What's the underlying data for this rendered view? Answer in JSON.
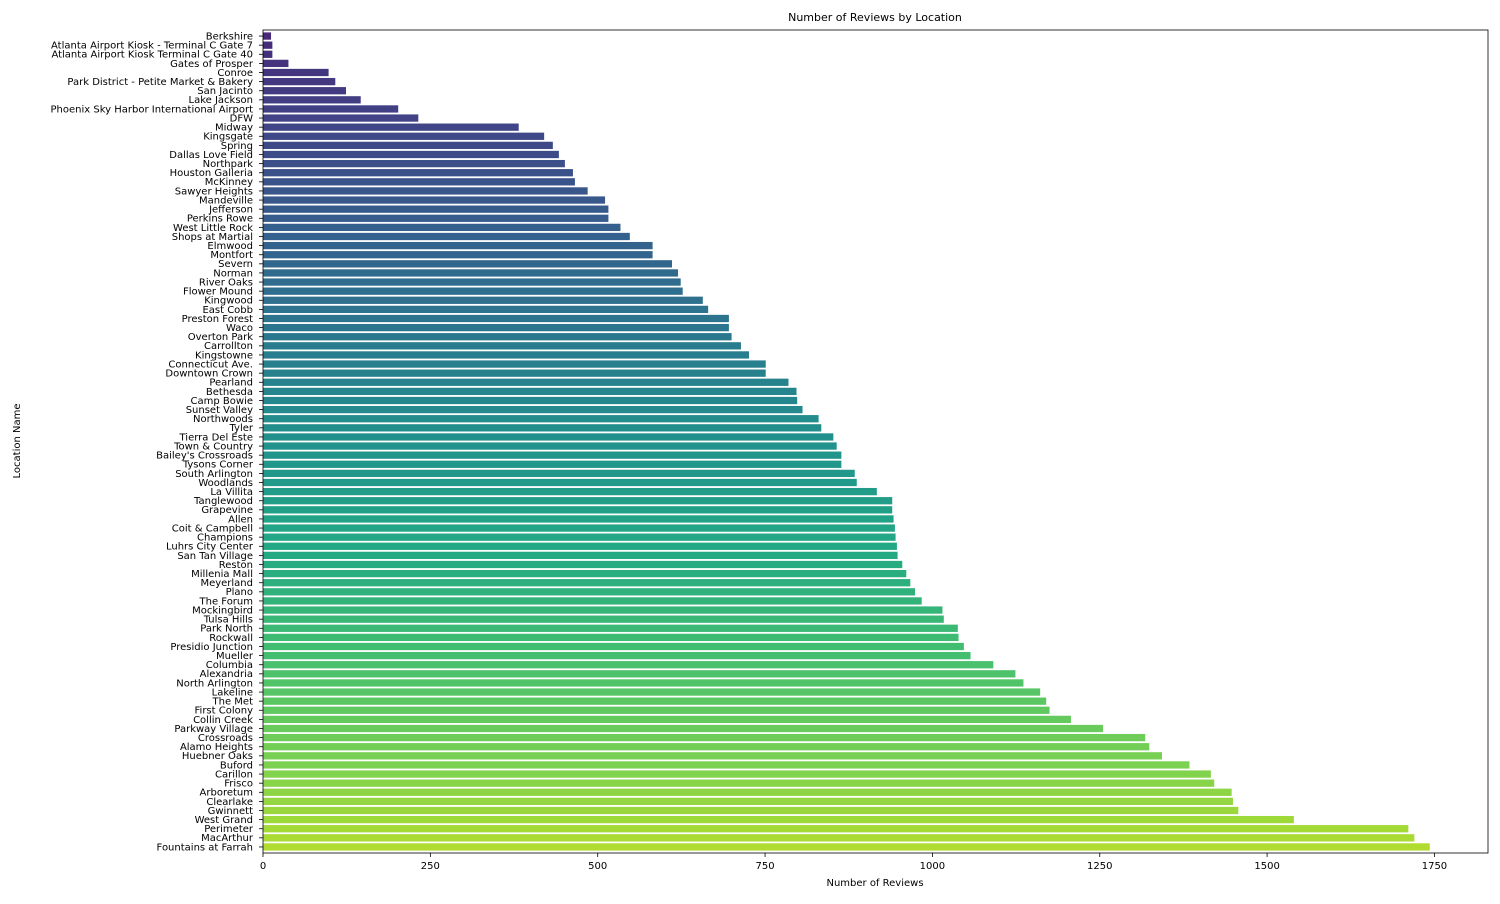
{
  "chart_data": {
    "type": "bar",
    "orientation": "horizontal",
    "title": "Number of Reviews by Location",
    "xlabel": "Number of Reviews",
    "ylabel": "Location Name",
    "xlim": [
      0,
      1830
    ],
    "xticks": [
      0,
      250,
      500,
      750,
      1000,
      1250,
      1500,
      1750
    ],
    "grid": false,
    "legend": "none",
    "colormap": "viridis",
    "categories": [
      "Berkshire",
      "Atlanta Airport Kiosk - Terminal C Gate 7",
      "Atlanta Airport Kiosk Terminal C Gate 40",
      "Gates of Prosper",
      "Conroe",
      "Park District - Petite Market & Bakery",
      "San Jacinto",
      "Lake Jackson",
      "Phoenix Sky Harbor International Airport",
      "DFW",
      "Midway",
      "Kingsgate",
      "Spring",
      "Dallas Love Field",
      "Northpark",
      "Houston Galleria",
      "McKinney",
      "Sawyer Heights",
      "Mandeville",
      "Jefferson",
      "Perkins Rowe",
      "West Little Rock",
      "Shops at Martial",
      "Elmwood",
      "Montfort",
      "Severn",
      "Norman",
      "River Oaks",
      "Flower Mound",
      "Kingwood",
      "East Cobb",
      "Preston Forest",
      "Waco",
      "Overton Park",
      "Carrollton",
      "Kingstowne",
      "Connecticut Ave.",
      "Downtown Crown",
      "Pearland",
      "Bethesda",
      "Camp Bowie",
      "Sunset Valley",
      "Northwoods",
      "Tyler",
      "Tierra Del Este",
      "Town & Country",
      "Bailey's Crossroads",
      "Tysons Corner",
      "South Arlington",
      "Woodlands",
      "La Villita",
      "Tanglewood",
      "Grapevine",
      "Allen",
      "Coit & Campbell",
      "Champions",
      "Luhrs City Center",
      "San Tan Village",
      "Reston",
      "Millenia Mall",
      "Meyerland",
      "Plano",
      "The Forum",
      "Mockingbird",
      "Tulsa Hills",
      "Park North",
      "Rockwall",
      "Presidio Junction",
      "Mueller",
      "Columbia",
      "Alexandria",
      "North Arlington",
      "Lakeline",
      "The Met",
      "First Colony",
      "Collin Creek",
      "Parkway Village",
      "Crossroads",
      "Alamo Heights",
      "Huebner Oaks",
      "Buford",
      "Carillon",
      "Frisco",
      "Arboretum",
      "Clearlake",
      "Gwinnett",
      "West Grand",
      "Perimeter",
      "MacArthur",
      "Fountains at Farrah"
    ],
    "values": [
      12,
      14,
      14,
      38,
      98,
      108,
      124,
      146,
      202,
      232,
      382,
      420,
      433,
      442,
      451,
      463,
      466,
      485,
      511,
      516,
      516,
      534,
      548,
      582,
      582,
      611,
      620,
      624,
      627,
      657,
      665,
      696,
      696,
      700,
      714,
      726,
      751,
      751,
      785,
      797,
      798,
      806,
      830,
      834,
      852,
      857,
      864,
      864,
      884,
      887,
      917,
      940,
      940,
      942,
      944,
      945,
      947,
      948,
      955,
      961,
      967,
      974,
      984,
      1015,
      1017,
      1038,
      1039,
      1047,
      1057,
      1091,
      1124,
      1136,
      1161,
      1170,
      1175,
      1207,
      1255,
      1318,
      1324,
      1343,
      1384,
      1416,
      1421,
      1447,
      1449,
      1457,
      1540,
      1711,
      1720,
      1743
    ]
  }
}
